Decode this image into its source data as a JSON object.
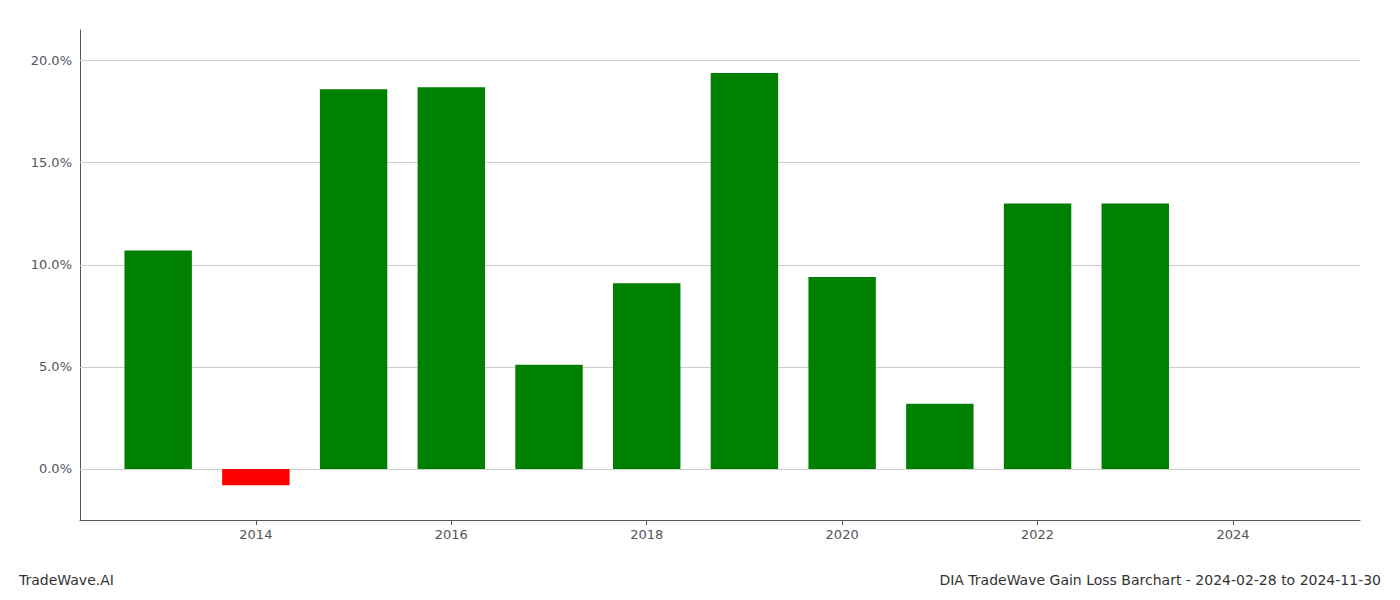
{
  "chart_data": {
    "type": "bar",
    "title": "DIA TradeWave Gain Loss Barchart - 2024-02-28 to 2024-11-30",
    "annotations": [
      "TradeWave.AI"
    ],
    "x": [
      2013,
      2014,
      2015,
      2016,
      2017,
      2018,
      2019,
      2020,
      2021,
      2022,
      2023
    ],
    "values": [
      0.107,
      -0.008,
      0.186,
      0.187,
      0.051,
      0.091,
      0.194,
      0.094,
      0.032,
      0.13,
      0.13
    ],
    "colors": [
      "#008000",
      "#ff0000",
      "#008000",
      "#008000",
      "#008000",
      "#008000",
      "#008000",
      "#008000",
      "#008000",
      "#008000",
      "#008000"
    ],
    "xlim": [
      2012.2,
      2025.3
    ],
    "xticks": [
      2014,
      2016,
      2018,
      2020,
      2022,
      2024
    ],
    "ylim": [
      -0.025,
      0.215
    ],
    "yticks": [
      {
        "value": 0.0,
        "label": "0.0%"
      },
      {
        "value": 0.05,
        "label": "5.0%"
      },
      {
        "value": 0.1,
        "label": "10.0%"
      },
      {
        "value": 0.15,
        "label": "15.0%"
      },
      {
        "value": 0.2,
        "label": "20.0%"
      }
    ],
    "grid": true
  }
}
